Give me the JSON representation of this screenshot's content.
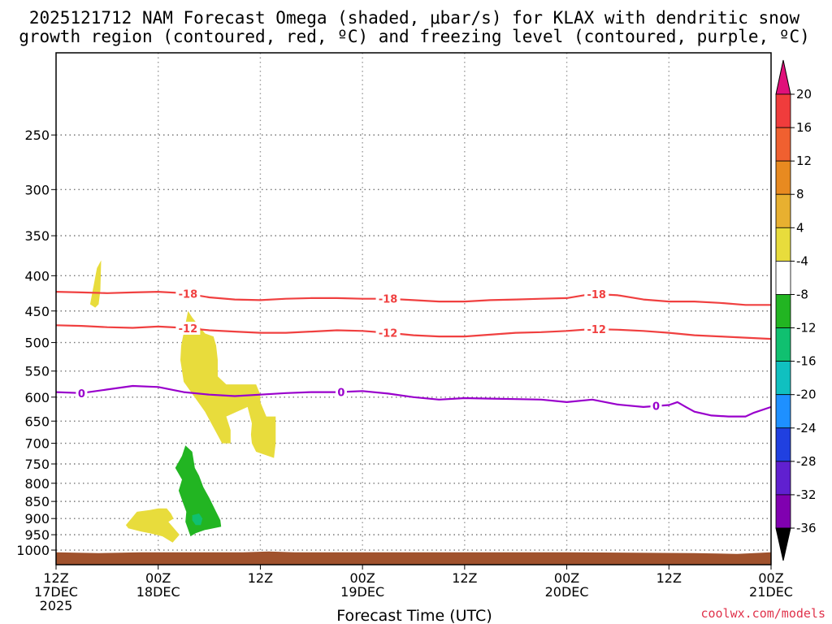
{
  "title": {
    "line1": "2025121712 NAM Forecast Omega (shaded, μbar/s) for KLAX with dendritic snow",
    "line2": "growth region (contoured, red, ºC) and freezing level (contoured, purple, ºC)"
  },
  "credit": "coolwx.com/models",
  "chart_data": {
    "type": "time-height cross section",
    "xlabel": "Forecast Time (UTC)",
    "ylabel": "",
    "x_range_hours": [
      0,
      84
    ],
    "y_range_mb": [
      1050,
      190
    ],
    "y_scale": "log",
    "x_ticks": [
      {
        "hour": 0,
        "line1": "12Z",
        "line2": "17DEC",
        "line3": "2025"
      },
      {
        "hour": 12,
        "line1": "00Z",
        "line2": "18DEC",
        "line3": ""
      },
      {
        "hour": 24,
        "line1": "12Z",
        "line2": "",
        "line3": ""
      },
      {
        "hour": 36,
        "line1": "00Z",
        "line2": "19DEC",
        "line3": ""
      },
      {
        "hour": 48,
        "line1": "12Z",
        "line2": "",
        "line3": ""
      },
      {
        "hour": 60,
        "line1": "00Z",
        "line2": "20DEC",
        "line3": ""
      },
      {
        "hour": 72,
        "line1": "12Z",
        "line2": "",
        "line3": ""
      },
      {
        "hour": 84,
        "line1": "00Z",
        "line2": "21DEC",
        "line3": ""
      }
    ],
    "y_ticks": [
      250,
      300,
      350,
      400,
      450,
      500,
      550,
      600,
      650,
      700,
      750,
      800,
      850,
      900,
      950,
      1000
    ],
    "grid": true,
    "colorbar": {
      "label_values": [
        20,
        16,
        12,
        8,
        4,
        -4,
        -8,
        -12,
        -16,
        -20,
        -24,
        -28,
        -32,
        -36
      ],
      "colors": [
        "#ffffff",
        "#e8dc3c",
        "#e8b030",
        "#e88a20",
        "#f06030",
        "#f03c3c",
        "#e0107a",
        "#22b522",
        "#10c070",
        "#10c0c0",
        "#1e90ff",
        "#2040e0",
        "#6020d0",
        "#8000b0",
        "#a0a0a0",
        "#000000"
      ],
      "label_order": "top to bottom"
    },
    "ground": {
      "color": "#a0522d",
      "pressure_mb": 1010
    },
    "contours": [
      {
        "name": "-18C isotherm",
        "label": "-18",
        "color": "#f04040",
        "x": [
          0,
          3,
          6,
          9,
          12,
          15,
          18,
          21,
          24,
          27,
          30,
          33,
          36,
          39,
          42,
          45,
          48,
          51,
          54,
          57,
          60,
          63,
          66,
          69,
          72,
          75,
          78,
          81,
          84
        ],
        "y": [
          422,
          423,
          424,
          423,
          422,
          424,
          430,
          433,
          434,
          432,
          431,
          431,
          432,
          432,
          434,
          436,
          436,
          434,
          433,
          432,
          431,
          425,
          427,
          433,
          436,
          436,
          438,
          441,
          441
        ],
        "label_hours": [
          15.5,
          39,
          63.5
        ]
      },
      {
        "name": "-12C isotherm",
        "label": "-12",
        "color": "#f04040",
        "x": [
          0,
          3,
          6,
          9,
          12,
          15,
          18,
          21,
          24,
          27,
          30,
          33,
          36,
          39,
          42,
          45,
          48,
          51,
          54,
          57,
          60,
          63,
          66,
          69,
          72,
          75,
          78,
          81,
          84
        ],
        "y": [
          472,
          473,
          475,
          476,
          474,
          476,
          480,
          482,
          484,
          484,
          482,
          480,
          481,
          484,
          488,
          490,
          490,
          487,
          484,
          483,
          481,
          478,
          479,
          481,
          484,
          488,
          490,
          492,
          494
        ],
        "label_hours": [
          15.5,
          39,
          63.5
        ]
      },
      {
        "name": "0C freezing level",
        "label": "0",
        "color": "#9900cc",
        "x": [
          0,
          3,
          6,
          9,
          12,
          15,
          18,
          21,
          24,
          27,
          30,
          33,
          36,
          39,
          42,
          45,
          48,
          51,
          54,
          57,
          60,
          63,
          66,
          69,
          72,
          73,
          74,
          75,
          77,
          79,
          81,
          82,
          84
        ],
        "y": [
          590,
          592,
          585,
          578,
          580,
          590,
          595,
          598,
          595,
          592,
          590,
          590,
          588,
          593,
          600,
          605,
          602,
          603,
          604,
          605,
          610,
          605,
          615,
          620,
          616,
          610,
          620,
          630,
          638,
          640,
          640,
          632,
          620
        ],
        "label_hours": [
          3,
          33.5,
          70.5
        ]
      }
    ],
    "omega_regions": [
      {
        "name": "upper small positive omega",
        "range": "4 to 8",
        "color": "#e8dc3c",
        "points": [
          [
            4,
            440
          ],
          [
            4.8,
            390
          ],
          [
            5.3,
            380
          ],
          [
            5.2,
            420
          ],
          [
            5.0,
            440
          ],
          [
            4.6,
            445
          ]
        ]
      },
      {
        "name": "main positive omega region",
        "range": "4 to 8",
        "color": "#e8dc3c",
        "points": [
          [
            14.7,
            505
          ],
          [
            15.5,
            450
          ],
          [
            16.0,
            460
          ],
          [
            17.5,
            485
          ],
          [
            18.5,
            490
          ],
          [
            18.8,
            505
          ],
          [
            19.0,
            530
          ],
          [
            19.0,
            560
          ],
          [
            20.0,
            575
          ],
          [
            23.5,
            575
          ],
          [
            24.0,
            595
          ],
          [
            24.0,
            610
          ],
          [
            24.7,
            640
          ],
          [
            25.8,
            640
          ],
          [
            25.8,
            700
          ],
          [
            25.6,
            735
          ],
          [
            23.5,
            720
          ],
          [
            23.0,
            700
          ],
          [
            22.9,
            680
          ],
          [
            23.0,
            655
          ],
          [
            22.5,
            620
          ],
          [
            20.0,
            640
          ],
          [
            20.5,
            670
          ],
          [
            20.5,
            700
          ],
          [
            19.5,
            700
          ],
          [
            17.5,
            630
          ],
          [
            15.0,
            570
          ],
          [
            14.6,
            530
          ]
        ]
      },
      {
        "name": "lower-left positive omega region",
        "range": "4 to 8",
        "color": "#e8dc3c",
        "points": [
          [
            8.2,
            920
          ],
          [
            9.5,
            880
          ],
          [
            11.0,
            875
          ],
          [
            12.0,
            870
          ],
          [
            13.0,
            870
          ],
          [
            13.5,
            885
          ],
          [
            13.8,
            900
          ],
          [
            13.2,
            910
          ],
          [
            14.5,
            950
          ],
          [
            13.7,
            975
          ],
          [
            12.5,
            955
          ],
          [
            11.0,
            945
          ],
          [
            10.0,
            940
          ],
          [
            8.5,
            930
          ]
        ]
      },
      {
        "name": "negative omega region",
        "range": "-4 to -8",
        "color": "#22b522",
        "points": [
          [
            15.2,
            705
          ],
          [
            16.0,
            720
          ],
          [
            16.3,
            760
          ],
          [
            16.8,
            780
          ],
          [
            17.3,
            810
          ],
          [
            18.0,
            840
          ],
          [
            18.8,
            880
          ],
          [
            19.3,
            905
          ],
          [
            19.4,
            925
          ],
          [
            17.5,
            935
          ],
          [
            16.4,
            945
          ],
          [
            15.8,
            955
          ],
          [
            15.2,
            910
          ],
          [
            15.3,
            880
          ],
          [
            15.0,
            860
          ],
          [
            14.4,
            820
          ],
          [
            14.8,
            790
          ],
          [
            14.0,
            760
          ],
          [
            14.8,
            730
          ]
        ]
      },
      {
        "name": "negative omega core",
        "range": "-8 to -12",
        "color": "#10c070",
        "points": [
          [
            16.0,
            890
          ],
          [
            16.8,
            885
          ],
          [
            17.2,
            900
          ],
          [
            17.0,
            920
          ],
          [
            16.4,
            920
          ],
          [
            16.0,
            905
          ]
        ]
      }
    ]
  }
}
